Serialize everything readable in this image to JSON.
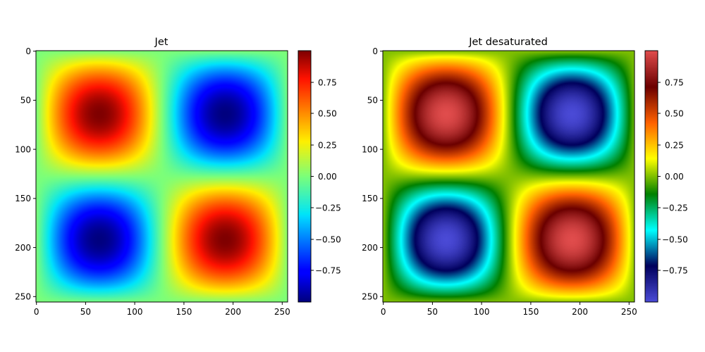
{
  "chart_data": [
    {
      "type": "heatmap",
      "title": "Jet",
      "colormap": "jet",
      "function": "sin(2*pi*x/256) * sin(2*pi*y/256)",
      "grid_size": [
        256,
        256
      ],
      "xlim": [
        0,
        256
      ],
      "ylim": [
        256,
        0
      ],
      "x_ticks": [
        "0",
        "50",
        "100",
        "150",
        "200",
        "250"
      ],
      "y_ticks": [
        "0",
        "50",
        "100",
        "150",
        "200",
        "250"
      ],
      "colorbar_range": [
        -1,
        1
      ],
      "colorbar_ticks": [
        "−0.75",
        "−0.50",
        "−0.25",
        "0.00",
        "0.25",
        "0.50",
        "0.75"
      ]
    },
    {
      "type": "heatmap",
      "title": "Jet desaturated",
      "colormap": "jet-desaturated",
      "function": "sin(2*pi*x/256) * sin(2*pi*y/256)",
      "grid_size": [
        256,
        256
      ],
      "xlim": [
        0,
        256
      ],
      "ylim": [
        256,
        0
      ],
      "x_ticks": [
        "0",
        "50",
        "100",
        "150",
        "200",
        "250"
      ],
      "y_ticks": [
        "0",
        "50",
        "100",
        "150",
        "200",
        "250"
      ],
      "colorbar_range": [
        -1,
        1
      ],
      "colorbar_ticks": [
        "−0.75",
        "−0.50",
        "−0.25",
        "0.00",
        "0.25",
        "0.50",
        "0.75"
      ]
    }
  ]
}
